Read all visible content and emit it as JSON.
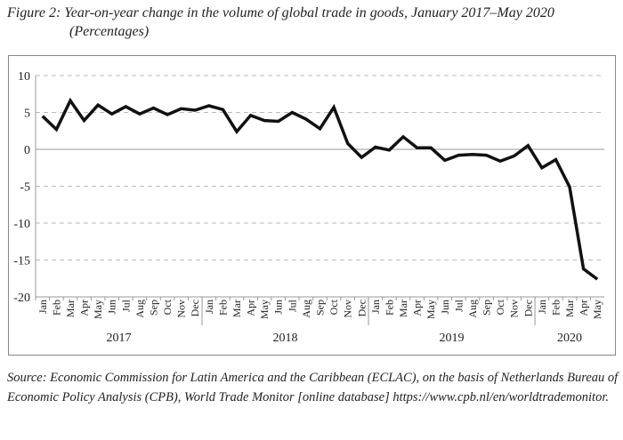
{
  "title": "Figure 2: Year-on-year change in the volume of global trade in goods, January 2017–May 2020",
  "subtitle": "(Percentages)",
  "source": "Source: Economic Commission for Latin America and the Caribbean (ECLAC), on the basis of Netherlands Bureau of Economic Policy Analysis (CPB), World Trade Monitor [online database] https://www.cpb.nl/en/worldtrademonitor.",
  "chart_data": {
    "type": "line",
    "title": "Year-on-year change in the volume of global trade in goods, January 2017–May 2020",
    "ylim": [
      -20,
      10
    ],
    "yticks": [
      10,
      5,
      0,
      -5,
      -10,
      -15,
      -20
    ],
    "grid": "horizontal dashed",
    "line_color": "#111111",
    "months": [
      "Jan",
      "Feb",
      "Mar",
      "Apr",
      "May",
      "Jun",
      "Jul",
      "Aug",
      "Sep",
      "Oct",
      "Nov",
      "Dec",
      "Jan",
      "Feb",
      "Mar",
      "Apr",
      "May",
      "Jun",
      "Jul",
      "Aug",
      "Sep",
      "Oct",
      "Nov",
      "Dec",
      "Jan",
      "Feb",
      "Mar",
      "Apr",
      "May",
      "Jun",
      "Jul",
      "Aug",
      "Sep",
      "Oct",
      "Nov",
      "Dec",
      "Jan",
      "Feb",
      "Mar",
      "Apr",
      "May"
    ],
    "years": [
      {
        "label": "2017",
        "count": 12
      },
      {
        "label": "2018",
        "count": 12
      },
      {
        "label": "2019",
        "count": 12
      },
      {
        "label": "2020",
        "count": 5
      }
    ],
    "values": [
      4.5,
      2.7,
      6.6,
      3.9,
      6.0,
      4.8,
      5.8,
      4.8,
      5.6,
      4.7,
      5.5,
      5.3,
      5.9,
      5.4,
      2.4,
      4.6,
      3.9,
      3.8,
      5.0,
      4.1,
      2.8,
      5.7,
      0.8,
      -1.1,
      0.3,
      -0.1,
      1.7,
      0.2,
      0.2,
      -1.5,
      -0.8,
      -0.7,
      -0.8,
      -1.6,
      -0.9,
      0.5,
      -2.5,
      -1.4,
      -5.1,
      -16.2,
      -17.6
    ]
  }
}
